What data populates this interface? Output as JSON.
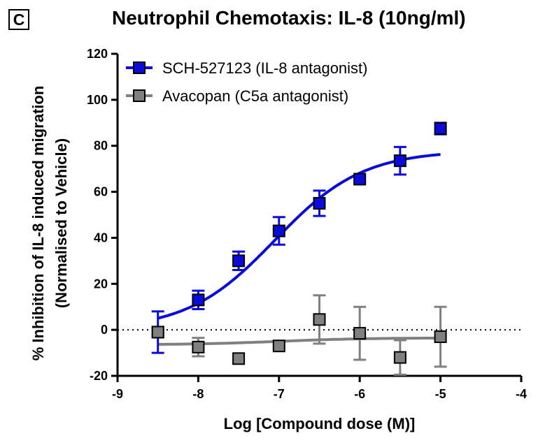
{
  "panel_label": "C",
  "chart_data": {
    "type": "scatter",
    "title": "Neutrophil Chemotaxis: IL-8 (10ng/ml)",
    "xlabel": "Log [Compound dose (M)]",
    "ylabel_line1": "% Inhibition of IL-8 induced migration",
    "ylabel_line2": "(Normalised to Vehicle)",
    "xlim": [
      -9,
      -4
    ],
    "ylim": [
      -20,
      120
    ],
    "xticks": [
      -9,
      -8,
      -7,
      -6,
      -5,
      -4
    ],
    "yticks": [
      -20,
      0,
      20,
      40,
      60,
      80,
      100,
      120
    ],
    "reference_line_y": 0,
    "series": [
      {
        "name": "SCH-527123 (IL-8 antagonist)",
        "color": "#0a0adb",
        "x": [
          -8.5,
          -8,
          -7.5,
          -7,
          -6.5,
          -6,
          -5.5,
          -5
        ],
        "y": [
          -1,
          13,
          30,
          43,
          55,
          65.5,
          73.5,
          87.5
        ],
        "err": [
          9,
          4,
          4,
          6,
          5.5,
          1,
          6,
          2.5
        ],
        "fit": {
          "bottom": 0,
          "top": 78,
          "logEC50": -7.05,
          "hill": 0.8
        }
      },
      {
        "name": "Avacopan (C5a antagonist)",
        "color": "#808080",
        "x": [
          -8.5,
          -8,
          -7.5,
          -7,
          -6.5,
          -6,
          -5.5,
          -5
        ],
        "y": [
          -1,
          -7.5,
          -12.5,
          -7,
          4.5,
          -1.5,
          -12,
          -3
        ],
        "err": [
          0,
          4,
          0,
          0,
          10.5,
          11.5,
          7.5,
          13
        ],
        "fit": {
          "bottom": -6.5,
          "top": -3.5,
          "logEC50": -7.0,
          "hill": 0.8
        }
      }
    ]
  }
}
